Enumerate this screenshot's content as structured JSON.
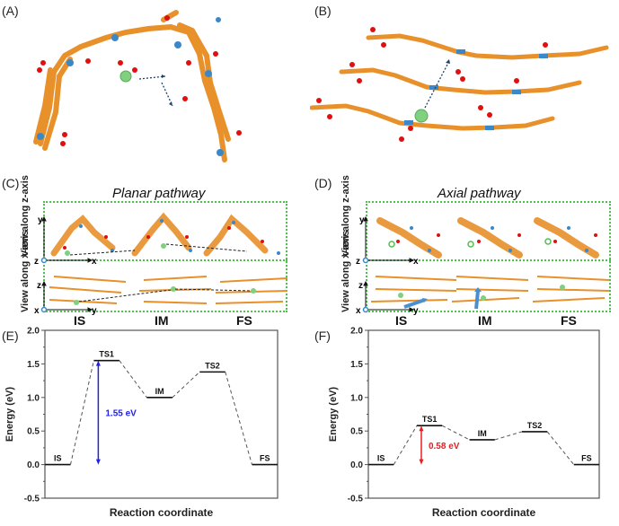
{
  "panels": {
    "A": {
      "label": "(A)"
    },
    "B": {
      "label": "(B)"
    },
    "C": {
      "label": "(C)",
      "title": "Planar pathway"
    },
    "D": {
      "label": "(D)",
      "title": "Axial pathway"
    },
    "E": {
      "label": "(E)"
    },
    "F": {
      "label": "(F)"
    }
  },
  "views": {
    "z_view": "View along z-axis",
    "x_view": "View along x-axis",
    "axes_top": {
      "vertical": "y",
      "origin": "z",
      "horizontal": "x"
    },
    "axes_bottom": {
      "vertical": "z",
      "origin": "x",
      "horizontal": "y"
    }
  },
  "states": [
    "IS",
    "IM",
    "FS"
  ],
  "colors": {
    "carbon": "#e8902a",
    "oxygen": "#e01010",
    "nitrogen": "#3a88c8",
    "hydrogen": "#f2d0d0",
    "lithium": "#7fd07f",
    "box": "#4cc24c",
    "planar_barrier": "#1f1fe6",
    "axial_barrier": "#e61f1f",
    "arrow_blue": "#4a8fd0"
  },
  "chart_data": [
    {
      "type": "line",
      "panel": "E",
      "title": "",
      "xlabel": "Reaction coordinate",
      "ylabel": "Energy (eV)",
      "ylim": [
        -0.5,
        2.0
      ],
      "yticks": [
        "-0.5",
        "0.0",
        "0.5",
        "1.0",
        "1.5",
        "2.0"
      ],
      "grid": false,
      "states": [
        "IS",
        "TS1",
        "IM",
        "TS2",
        "FS"
      ],
      "values": [
        0.0,
        1.55,
        1.0,
        1.38,
        0.0
      ],
      "annotation": {
        "text": "1.55 eV",
        "from": 0.0,
        "to": 1.55,
        "color": "#1f1fe6"
      }
    },
    {
      "type": "line",
      "panel": "F",
      "title": "",
      "xlabel": "Reaction coordinate",
      "ylabel": "Energy (eV)",
      "ylim": [
        -0.5,
        2.0
      ],
      "yticks": [
        "-0.5",
        "0.0",
        "0.5",
        "1.0",
        "1.5",
        "2.0"
      ],
      "grid": false,
      "states": [
        "IS",
        "TS1",
        "IM",
        "TS2",
        "FS"
      ],
      "values": [
        0.0,
        0.58,
        0.37,
        0.49,
        0.0
      ],
      "annotation": {
        "text": "0.58 eV",
        "from": 0.0,
        "to": 0.58,
        "color": "#e61f1f"
      }
    }
  ]
}
